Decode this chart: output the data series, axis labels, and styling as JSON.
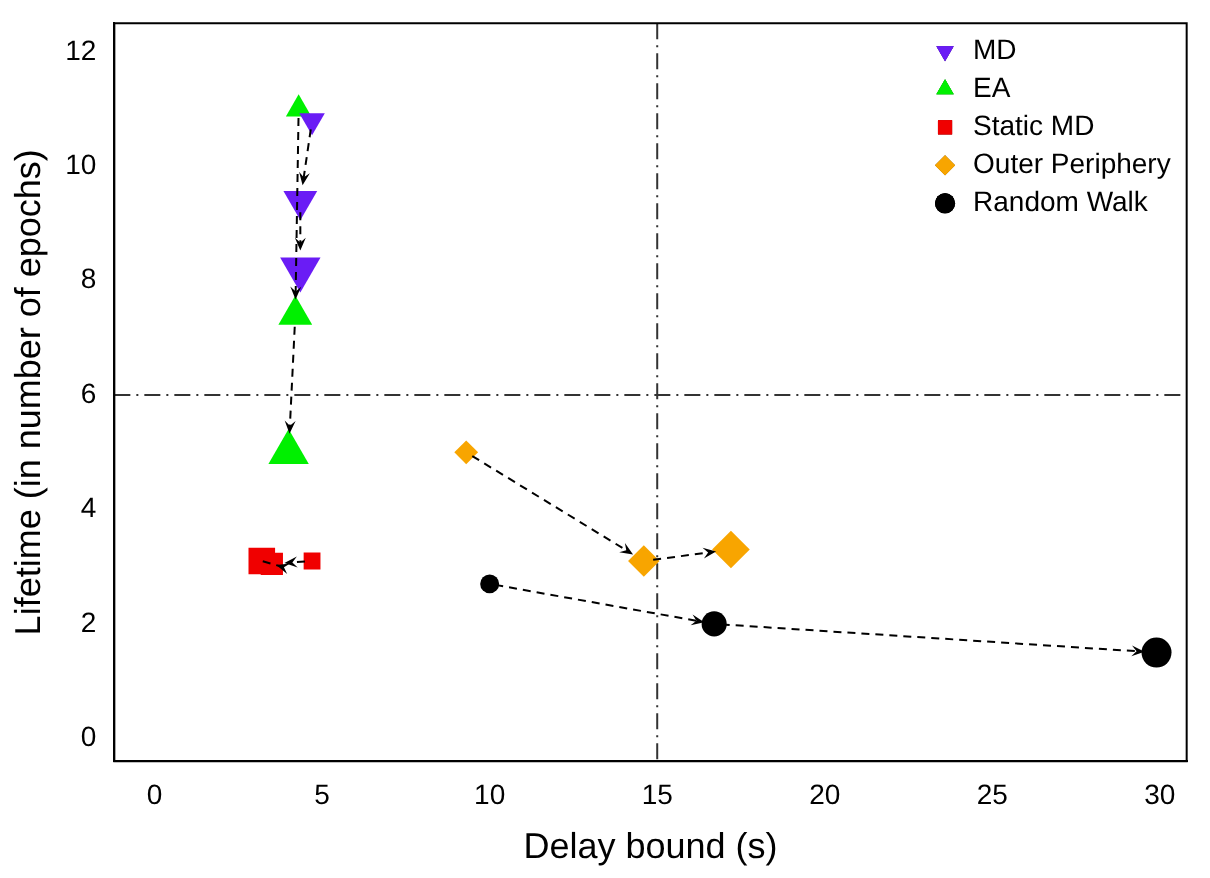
{
  "chart_data": {
    "type": "bubble",
    "xlabel": "Delay bound (s)",
    "ylabel": "Lifetime (in number of epochs)",
    "xlim": [
      -1.2,
      30.8
    ],
    "xticks": [
      0,
      5,
      10,
      15,
      20,
      25,
      30
    ],
    "ylim": [
      -0.4,
      12.5
    ],
    "yticks": [
      0,
      2,
      4,
      6,
      8,
      10,
      12
    ],
    "grid": false,
    "legend": "top right",
    "line_style": "dashed",
    "ref_lines": [
      {
        "axis": "x",
        "value": 15,
        "line_style": "dashdot"
      },
      {
        "axis": "y",
        "value": 6,
        "line_style": "dashdot"
      }
    ],
    "series": [
      {
        "name": "MD",
        "color": "#6a1cf5",
        "marker": "triangle-down",
        "x": [
          4.7,
          4.35,
          4.35
        ],
        "values": [
          10.8,
          9.4,
          8.2
        ],
        "sizes": [
          0.4,
          0.7,
          1
        ]
      },
      {
        "name": "EA",
        "color": "#00f000",
        "marker": "triangle",
        "x": [
          4.3,
          4.2,
          4.0
        ],
        "values": [
          11.0,
          7.4,
          5.0
        ],
        "sizes": [
          0.4,
          0.7,
          1
        ]
      },
      {
        "name": "Static MD",
        "color": "#f00000",
        "marker": "square",
        "x": [
          4.7,
          3.5,
          3.2
        ],
        "values": [
          3.1,
          3.05,
          3.1
        ],
        "sizes": [
          0.4,
          0.7,
          1
        ]
      },
      {
        "name": "Outer Periphery",
        "color": "#f8a500",
        "marker": "diamond",
        "x": [
          9.3,
          14.6,
          17.2
        ],
        "values": [
          5.0,
          3.1,
          3.3
        ],
        "sizes": [
          0.4,
          0.7,
          1
        ]
      },
      {
        "name": "Random Walk",
        "color": "#000000",
        "marker": "circle",
        "x": [
          10.0,
          16.7,
          29.9
        ],
        "values": [
          2.7,
          2.0,
          1.5
        ],
        "sizes": [
          0.4,
          0.7,
          1
        ]
      }
    ]
  }
}
